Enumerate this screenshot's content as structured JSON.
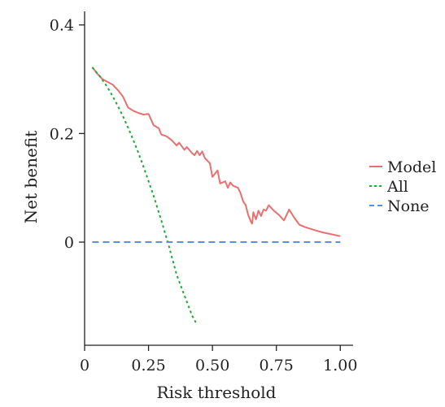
{
  "chart_data": {
    "type": "line",
    "xlabel": "Risk threshold",
    "ylabel": "Net benefit",
    "xlim": [
      0,
      1.05
    ],
    "ylim": [
      -0.19,
      0.425
    ],
    "x_ticks": [
      0,
      0.25,
      0.5,
      0.75,
      1.0
    ],
    "x_tick_labels": [
      "0",
      "0.25",
      "0.50",
      "0.75",
      "1.00"
    ],
    "y_ticks": [
      0,
      0.2,
      0.4
    ],
    "y_tick_labels": [
      "0",
      "0.2",
      "0.4"
    ],
    "grid": false,
    "legend_position": "right",
    "series": [
      {
        "name": "Model",
        "color": "#e8706e",
        "style": "solid",
        "x": [
          0.03,
          0.05,
          0.07,
          0.09,
          0.11,
          0.13,
          0.15,
          0.17,
          0.19,
          0.21,
          0.23,
          0.25,
          0.27,
          0.29,
          0.3,
          0.32,
          0.34,
          0.36,
          0.37,
          0.39,
          0.4,
          0.42,
          0.43,
          0.44,
          0.45,
          0.46,
          0.47,
          0.49,
          0.5,
          0.52,
          0.53,
          0.55,
          0.56,
          0.57,
          0.58,
          0.6,
          0.61,
          0.62,
          0.63,
          0.64,
          0.65,
          0.655,
          0.66,
          0.67,
          0.68,
          0.69,
          0.7,
          0.71,
          0.72,
          0.74,
          0.76,
          0.78,
          0.8,
          0.82,
          0.84,
          0.86,
          0.88,
          0.9,
          0.93,
          0.96,
          1.0
        ],
        "y": [
          0.322,
          0.31,
          0.3,
          0.295,
          0.29,
          0.28,
          0.268,
          0.248,
          0.242,
          0.238,
          0.235,
          0.236,
          0.215,
          0.21,
          0.198,
          0.195,
          0.188,
          0.178,
          0.183,
          0.17,
          0.175,
          0.164,
          0.16,
          0.168,
          0.16,
          0.167,
          0.155,
          0.145,
          0.12,
          0.132,
          0.108,
          0.112,
          0.1,
          0.11,
          0.104,
          0.1,
          0.09,
          0.075,
          0.068,
          0.05,
          0.038,
          0.034,
          0.055,
          0.042,
          0.058,
          0.048,
          0.06,
          0.058,
          0.068,
          0.058,
          0.05,
          0.04,
          0.06,
          0.045,
          0.032,
          0.028,
          0.025,
          0.022,
          0.018,
          0.015,
          0.011
        ]
      },
      {
        "name": "All",
        "color": "#22a83a",
        "style": "dotted",
        "x": [
          0.03,
          0.06,
          0.09,
          0.12,
          0.15,
          0.18,
          0.21,
          0.24,
          0.27,
          0.3,
          0.33,
          0.36,
          0.39,
          0.42,
          0.435
        ],
        "y": [
          0.322,
          0.305,
          0.285,
          0.26,
          0.232,
          0.2,
          0.165,
          0.126,
          0.085,
          0.04,
          -0.008,
          -0.06,
          -0.098,
          -0.135,
          -0.148
        ]
      },
      {
        "name": "None",
        "color": "#5b8fe0",
        "style": "dashed",
        "x": [
          0.03,
          1.0
        ],
        "y": [
          0,
          0
        ]
      }
    ]
  }
}
